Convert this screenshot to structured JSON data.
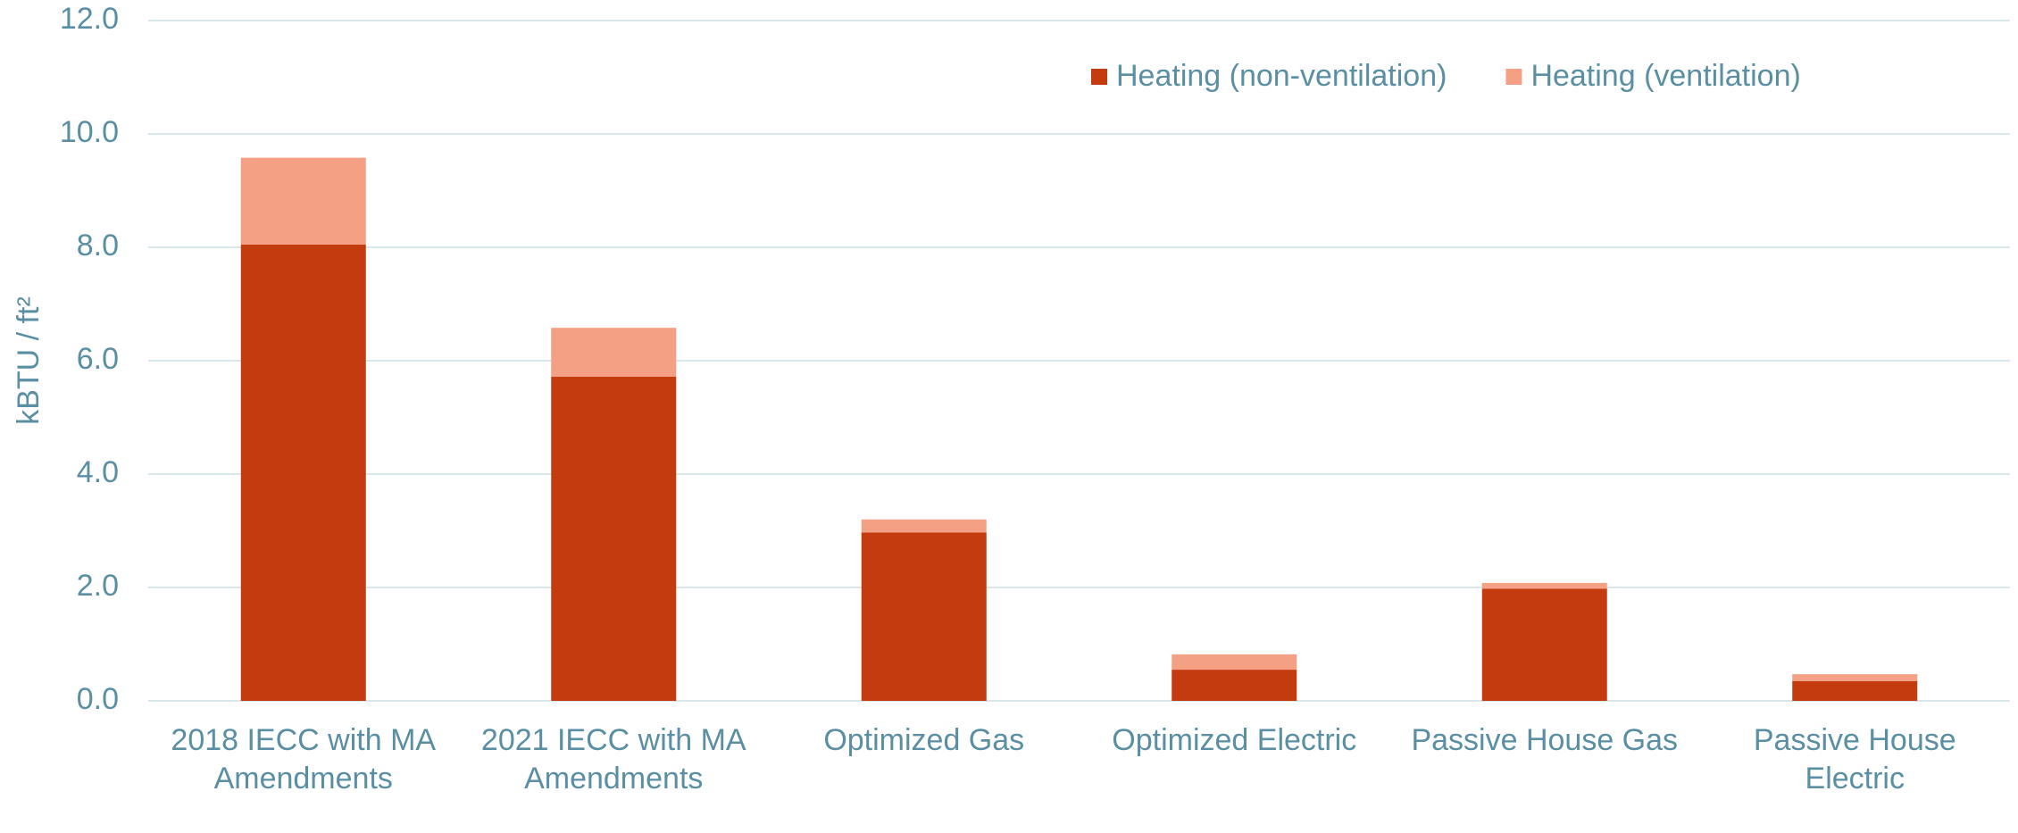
{
  "chart_data": {
    "type": "stacked_bar",
    "y_label": "kBTU / ft²",
    "categories": [
      "2018 IECC with MA Amendments",
      "2021 IECC with MA Amendments",
      "Optimized Gas",
      "Optimized Electric",
      "Passive House Gas",
      "Passive House Electric"
    ],
    "series": [
      {
        "name": "Heating (non-ventilation)",
        "color": "#c33b0e",
        "values": [
          8.05,
          5.72,
          2.97,
          0.55,
          1.98,
          0.35
        ]
      },
      {
        "name": "Heating (ventilation)",
        "color": "#f4a084",
        "values": [
          1.53,
          0.86,
          0.23,
          0.27,
          0.1,
          0.12
        ]
      }
    ],
    "ylim": [
      0,
      12
    ],
    "yticks": [
      {
        "value": 0,
        "label": "0.0"
      },
      {
        "value": 2,
        "label": "2.0"
      },
      {
        "value": 4,
        "label": "4.0"
      },
      {
        "value": 6,
        "label": "6.0"
      },
      {
        "value": 8,
        "label": "8.0"
      },
      {
        "value": 10,
        "label": "10.0"
      },
      {
        "value": 12,
        "label": "12.0"
      }
    ],
    "grid": true,
    "legend": "top-right"
  }
}
